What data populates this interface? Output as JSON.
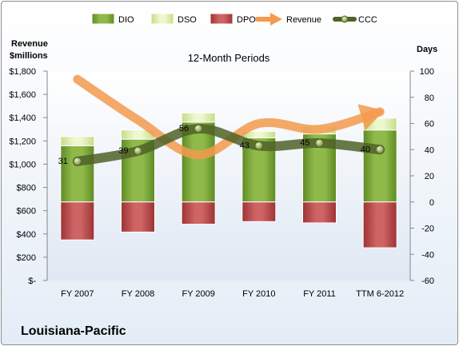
{
  "company": "Louisiana-Pacific",
  "chart_data": {
    "type": "bar",
    "title": "12-Month Periods",
    "categories": [
      "FY 2007",
      "FY 2008",
      "FY 2009",
      "FY 2010",
      "FY 2011",
      "TTM 6-2012"
    ],
    "left_axis": {
      "label_line1": "Revenue",
      "label_line2": "$millions",
      "ylim": [
        0,
        1800
      ],
      "ticks": [
        0,
        200,
        400,
        600,
        800,
        1000,
        1200,
        1400,
        1600,
        1800
      ],
      "tick_labels": [
        "$-",
        "$200",
        "$400",
        "$600",
        "$800",
        "$1,000",
        "$1,200",
        "$1,400",
        "$1,600",
        "$1,800"
      ]
    },
    "right_axis": {
      "label": "Days",
      "ylim": [
        -60,
        100
      ],
      "ticks": [
        -60,
        -40,
        -20,
        0,
        20,
        40,
        60,
        80,
        100
      ],
      "tick_labels": [
        "-60",
        "-40",
        "-20",
        "0",
        "20",
        "40",
        "60",
        "80",
        "100"
      ]
    },
    "series": [
      {
        "name": "DIO",
        "type": "stacked-bar",
        "axis": "right",
        "color": "#77a33a",
        "values": [
          43,
          48,
          61,
          49,
          52,
          55
        ]
      },
      {
        "name": "DSO",
        "type": "stacked-bar",
        "axis": "right",
        "color": "#dcefac",
        "values": [
          7,
          7,
          7,
          5,
          6,
          9
        ]
      },
      {
        "name": "DPO",
        "type": "stacked-bar",
        "axis": "right",
        "color": "#b84a4b",
        "values": [
          -29,
          -23,
          -17,
          -15,
          -16,
          -35
        ]
      },
      {
        "name": "Revenue",
        "type": "line",
        "axis": "left",
        "color": "#f39a4e",
        "values": [
          1730,
          1380,
          1080,
          1350,
          1300,
          1450
        ]
      },
      {
        "name": "CCC",
        "type": "line",
        "axis": "right",
        "color": "#4f6228",
        "values": [
          31,
          39,
          56,
          43,
          45,
          40
        ],
        "data_labels": [
          "31",
          "39",
          "56",
          "43",
          "45",
          "40"
        ]
      }
    ],
    "legend": {
      "placement": "top",
      "items": [
        "DIO",
        "DSO",
        "DPO",
        "Revenue",
        "CCC"
      ]
    },
    "grid": false
  }
}
